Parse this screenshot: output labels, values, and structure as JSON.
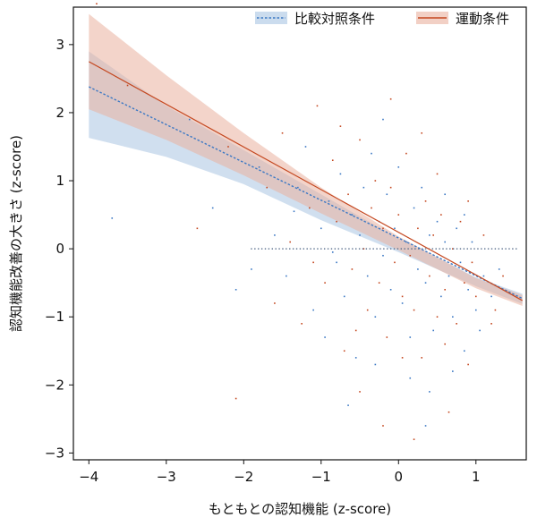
{
  "chart_data": {
    "type": "scatter",
    "xlabel": "もともとの認知機能 (z-score)",
    "ylabel": "認知機能改善の大きさ (z-score)",
    "xlim": [
      -4.2,
      1.65
    ],
    "ylim": [
      -3.1,
      3.55
    ],
    "xticks": [
      -4,
      -3,
      -2,
      -1,
      0,
      1
    ],
    "yticks": [
      -3,
      -2,
      -1,
      0,
      1,
      2,
      3
    ],
    "xtick_labels": [
      "−4",
      "−3",
      "−2",
      "−1",
      "0",
      "1"
    ],
    "ytick_labels": [
      "−3",
      "−2",
      "−1",
      "0",
      "1",
      "2",
      "3"
    ],
    "grid": false,
    "legend_position": "top-right",
    "series": [
      {
        "name": "比較対照条件",
        "color": "#3b78c4",
        "band_color": "#a9c4e2",
        "line_style": "dotted",
        "fit": {
          "x": [
            -4.0,
            1.6
          ],
          "y": [
            2.38,
            -0.73
          ]
        },
        "band_upper": {
          "x": [
            -4.0,
            -3.0,
            -2.0,
            -1.0,
            0.0,
            1.0,
            1.6
          ],
          "y": [
            2.9,
            2.1,
            1.45,
            0.8,
            0.15,
            -0.42,
            -0.66
          ]
        },
        "band_lower": {
          "x": [
            -4.0,
            -3.0,
            -2.0,
            -1.0,
            0.0,
            1.0,
            1.6
          ],
          "y": [
            1.63,
            1.35,
            0.95,
            0.42,
            -0.05,
            -0.55,
            -0.81
          ]
        },
        "points": [
          [
            -3.7,
            0.45
          ],
          [
            -2.7,
            1.9
          ],
          [
            -2.4,
            0.6
          ],
          [
            -2.1,
            -0.6
          ],
          [
            -1.8,
            1.2
          ],
          [
            -1.6,
            0.2
          ],
          [
            -1.45,
            -0.4
          ],
          [
            -1.3,
            0.9
          ],
          [
            -1.2,
            1.5
          ],
          [
            -1.1,
            -0.9
          ],
          [
            -1.0,
            0.3
          ],
          [
            -0.95,
            -1.3
          ],
          [
            -0.9,
            0.7
          ],
          [
            -0.8,
            -0.2
          ],
          [
            -0.75,
            1.1
          ],
          [
            -0.7,
            -0.7
          ],
          [
            -0.6,
            0.5
          ],
          [
            -0.55,
            -1.6
          ],
          [
            -0.5,
            0.2
          ],
          [
            -0.45,
            0.9
          ],
          [
            -0.4,
            -0.4
          ],
          [
            -0.35,
            1.4
          ],
          [
            -0.3,
            -1.0
          ],
          [
            -0.25,
            0.4
          ],
          [
            -0.2,
            -0.1
          ],
          [
            -0.15,
            0.8
          ],
          [
            -0.1,
            -0.6
          ],
          [
            -0.05,
            0.3
          ],
          [
            0.0,
            1.2
          ],
          [
            0.05,
            -0.8
          ],
          [
            0.1,
            0.1
          ],
          [
            0.15,
            -1.9
          ],
          [
            0.2,
            0.6
          ],
          [
            0.25,
            -0.3
          ],
          [
            0.3,
            0.9
          ],
          [
            0.35,
            -0.5
          ],
          [
            0.4,
            0.2
          ],
          [
            0.45,
            -1.2
          ],
          [
            0.5,
            0.4
          ],
          [
            0.55,
            -0.7
          ],
          [
            0.6,
            0.1
          ],
          [
            0.65,
            -0.4
          ],
          [
            0.7,
            -1.0
          ],
          [
            0.75,
            0.3
          ],
          [
            0.8,
            -0.2
          ],
          [
            0.85,
            -1.5
          ],
          [
            0.9,
            -0.6
          ],
          [
            0.95,
            0.1
          ],
          [
            1.0,
            -0.9
          ],
          [
            1.1,
            -0.4
          ],
          [
            1.2,
            -0.7
          ],
          [
            1.3,
            -0.3
          ],
          [
            -0.65,
            -2.3
          ],
          [
            0.35,
            -2.6
          ],
          [
            -1.9,
            -0.3
          ],
          [
            -0.2,
            1.9
          ],
          [
            0.6,
            0.8
          ],
          [
            0.15,
            -1.3
          ],
          [
            -0.85,
            -0.05
          ],
          [
            0.85,
            0.5
          ],
          [
            -0.3,
            -1.7
          ],
          [
            0.4,
            -2.1
          ],
          [
            1.05,
            -1.2
          ],
          [
            -1.35,
            0.55
          ],
          [
            0.7,
            -1.8
          ]
        ]
      },
      {
        "name": "運動条件",
        "color": "#c4471f",
        "band_color": "#eab09e",
        "line_style": "solid",
        "fit": {
          "x": [
            -4.0,
            1.6
          ],
          "y": [
            2.75,
            -0.76
          ]
        },
        "band_upper": {
          "x": [
            -4.0,
            -3.0,
            -2.0,
            -1.0,
            0.0,
            1.0,
            1.6
          ],
          "y": [
            3.45,
            2.55,
            1.7,
            0.9,
            0.18,
            -0.43,
            -0.68
          ]
        },
        "band_lower": {
          "x": [
            -4.0,
            -3.0,
            -2.0,
            -1.0,
            0.0,
            1.0,
            1.6
          ],
          "y": [
            2.05,
            1.6,
            1.08,
            0.52,
            -0.02,
            -0.58,
            -0.84
          ]
        },
        "points": [
          [
            -3.9,
            3.6
          ],
          [
            -3.5,
            2.4
          ],
          [
            -2.2,
            1.5
          ],
          [
            -2.1,
            -2.2
          ],
          [
            -1.7,
            0.9
          ],
          [
            -1.5,
            1.7
          ],
          [
            -1.4,
            0.1
          ],
          [
            -1.25,
            -1.1
          ],
          [
            -1.15,
            0.6
          ],
          [
            -1.05,
            2.1
          ],
          [
            -0.95,
            -0.5
          ],
          [
            -0.85,
            1.3
          ],
          [
            -0.8,
            0.4
          ],
          [
            -0.7,
            -1.5
          ],
          [
            -0.65,
            0.8
          ],
          [
            -0.6,
            -0.3
          ],
          [
            -0.5,
            1.6
          ],
          [
            -0.45,
            0.0
          ],
          [
            -0.4,
            -0.9
          ],
          [
            -0.35,
            0.6
          ],
          [
            -0.3,
            1.0
          ],
          [
            -0.25,
            -0.5
          ],
          [
            -0.2,
            0.3
          ],
          [
            -0.15,
            -1.3
          ],
          [
            -0.1,
            0.9
          ],
          [
            -0.05,
            -0.2
          ],
          [
            0.0,
            0.5
          ],
          [
            0.05,
            -0.7
          ],
          [
            0.1,
            1.4
          ],
          [
            0.15,
            -0.1
          ],
          [
            0.2,
            -0.9
          ],
          [
            0.25,
            0.3
          ],
          [
            0.3,
            -1.6
          ],
          [
            0.35,
            0.7
          ],
          [
            0.4,
            -0.4
          ],
          [
            0.45,
            0.2
          ],
          [
            0.5,
            -1.0
          ],
          [
            0.55,
            0.5
          ],
          [
            0.6,
            -0.6
          ],
          [
            0.65,
            -2.4
          ],
          [
            0.7,
            0.0
          ],
          [
            0.75,
            -1.1
          ],
          [
            0.8,
            0.4
          ],
          [
            0.85,
            -0.5
          ],
          [
            0.9,
            -1.7
          ],
          [
            0.95,
            -0.2
          ],
          [
            1.0,
            -0.7
          ],
          [
            1.1,
            0.2
          ],
          [
            1.2,
            -1.1
          ],
          [
            1.35,
            -0.4
          ],
          [
            -0.5,
            -2.1
          ],
          [
            0.2,
            -2.8
          ],
          [
            -1.6,
            -0.8
          ],
          [
            -0.1,
            2.2
          ],
          [
            0.5,
            1.1
          ],
          [
            -0.75,
            1.8
          ],
          [
            0.05,
            -1.6
          ],
          [
            0.9,
            0.7
          ],
          [
            -1.1,
            -0.2
          ],
          [
            0.3,
            1.7
          ],
          [
            -2.6,
            0.3
          ],
          [
            -0.55,
            -1.2
          ],
          [
            0.6,
            -1.4
          ],
          [
            1.25,
            -0.9
          ],
          [
            -0.2,
            -2.6
          ]
        ]
      }
    ]
  }
}
